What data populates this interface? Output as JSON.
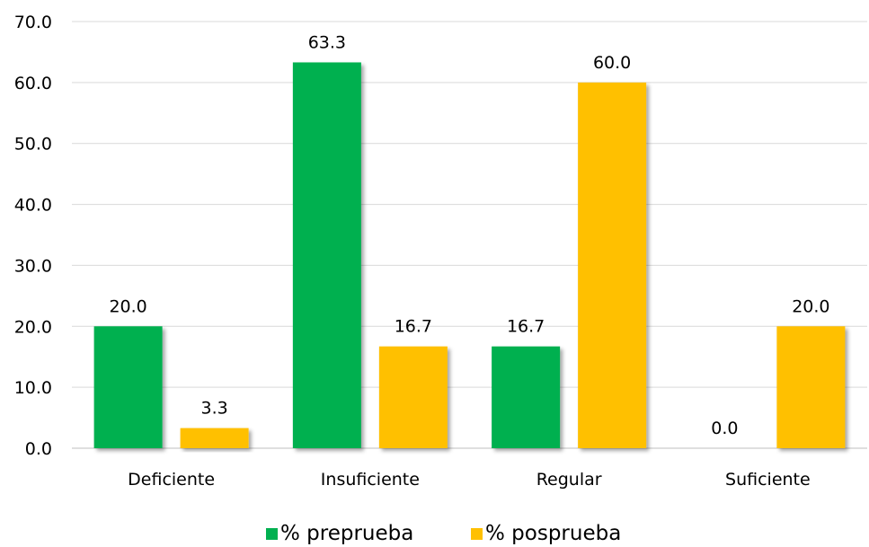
{
  "chart_data": {
    "type": "bar",
    "title": "",
    "xlabel": "",
    "ylabel": "",
    "categories": [
      "Deficiente",
      "Insuficiente",
      "Regular",
      "Suficiente"
    ],
    "series": [
      {
        "name": "% preprueba",
        "values": [
          20.0,
          63.3,
          16.7,
          0.0
        ],
        "color": "#00b050"
      },
      {
        "name": "% posprueba",
        "values": [
          3.3,
          16.7,
          60.0,
          20.0
        ],
        "color": "#ffc000"
      }
    ],
    "value_labels": [
      [
        "20.0",
        "63.3",
        "16.7",
        "0.0"
      ],
      [
        "3.3",
        "16.7",
        "60.0",
        "20.0"
      ]
    ],
    "ylim": [
      0,
      70
    ],
    "yticks": [
      "0.0",
      "10.0",
      "20.0",
      "30.0",
      "40.0",
      "50.0",
      "60.0",
      "70.0"
    ],
    "grid": true,
    "legend_position": "bottom"
  }
}
